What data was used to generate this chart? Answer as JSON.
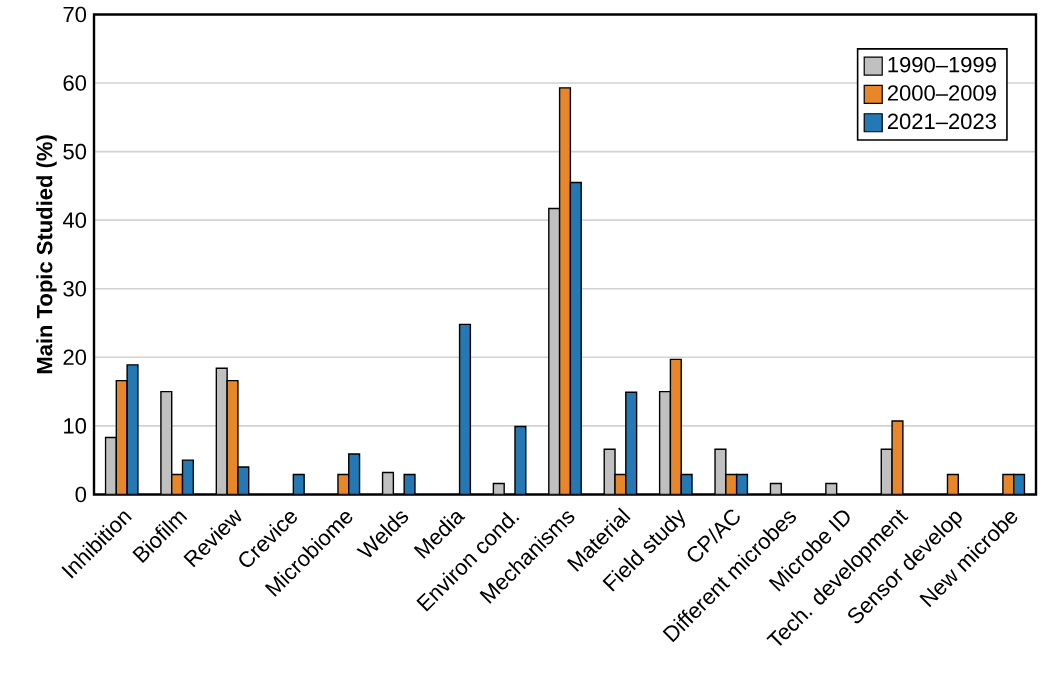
{
  "chart_data": {
    "type": "bar",
    "ylabel": "Main Topic Studied (%)",
    "categories": [
      "Inhibition",
      "Biofilm",
      "Review",
      "Crevice",
      "Microbiome",
      "Welds",
      "Media",
      "Environ cond.",
      "Mechanisms",
      "Material",
      "Field study",
      "CP/AC",
      "Different microbes",
      "Microbe ID",
      "Tech. development",
      "Sensor develop",
      "New microbe"
    ],
    "series": [
      {
        "name": "1990–1999",
        "color": "#c0c0c0",
        "values": [
          8.3,
          15.0,
          18.4,
          null,
          null,
          3.2,
          null,
          1.6,
          41.7,
          6.6,
          15.0,
          6.6,
          1.6,
          1.6,
          6.6,
          null,
          null
        ]
      },
      {
        "name": "2000–2009",
        "color": "#e8872a",
        "values": [
          16.6,
          2.9,
          16.6,
          null,
          2.9,
          null,
          null,
          null,
          59.3,
          2.9,
          19.7,
          2.9,
          null,
          null,
          10.7,
          2.9,
          2.9
        ]
      },
      {
        "name": "2021–2023",
        "color": "#2479b5",
        "values": [
          18.9,
          5.0,
          4.0,
          2.9,
          5.9,
          2.9,
          24.8,
          9.9,
          45.5,
          14.9,
          2.9,
          2.9,
          null,
          null,
          null,
          null,
          2.9
        ]
      }
    ],
    "ylim": [
      0,
      70
    ],
    "yticks": [
      0,
      10,
      20,
      30,
      40,
      50,
      60,
      70
    ],
    "grid": "y",
    "legend": "top right"
  }
}
